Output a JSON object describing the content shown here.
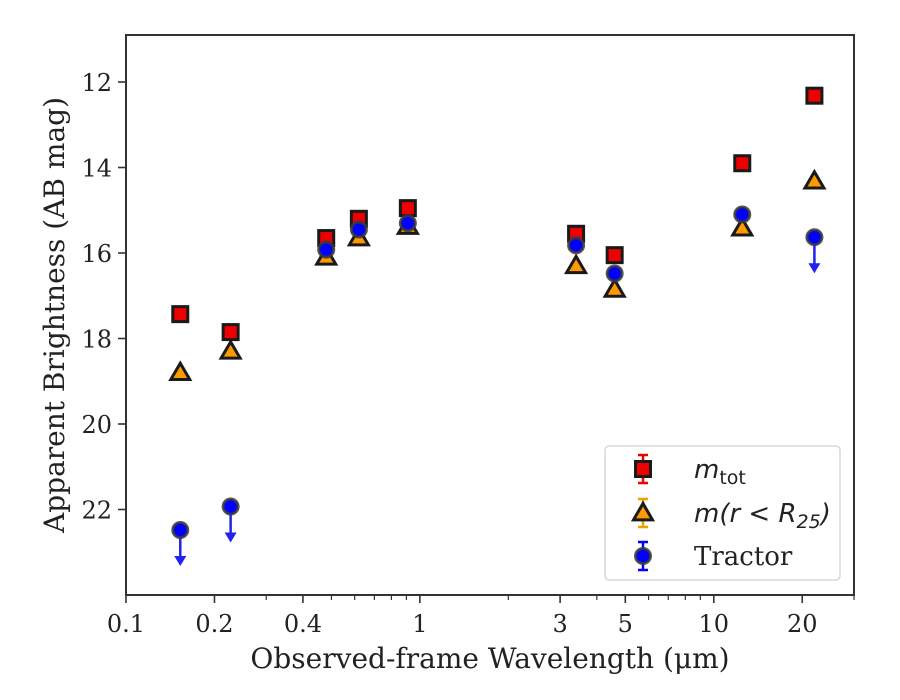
{
  "chart_data": {
    "type": "scatter",
    "title": "",
    "xlabel": "Observed-frame Wavelength (μm)",
    "ylabel": "Apparent Brightness (AB mag)",
    "xscale": "log",
    "xlim": [
      0.1,
      30
    ],
    "ylim": [
      24,
      10.9
    ],
    "y_inverted": true,
    "grid": false,
    "legend_position": "lower right",
    "xticks": [
      {
        "value": 0.1,
        "label": "0.1"
      },
      {
        "value": 0.2,
        "label": "0.2"
      },
      {
        "value": 0.4,
        "label": "0.4"
      },
      {
        "value": 1,
        "label": "1"
      },
      {
        "value": 3,
        "label": "3"
      },
      {
        "value": 5,
        "label": "5"
      },
      {
        "value": 10,
        "label": "10"
      },
      {
        "value": 20,
        "label": "20"
      }
    ],
    "xminor": [
      0.3,
      0.5,
      0.6,
      0.7,
      0.8,
      0.9,
      2,
      4,
      6,
      7,
      8,
      9,
      30
    ],
    "yticks": [
      {
        "value": 12,
        "label": "12"
      },
      {
        "value": 14,
        "label": "14"
      },
      {
        "value": 16,
        "label": "16"
      },
      {
        "value": 18,
        "label": "18"
      },
      {
        "value": 20,
        "label": "20"
      },
      {
        "value": 22,
        "label": "22"
      }
    ],
    "series": [
      {
        "name": "m_tot",
        "label_main": "m",
        "label_sub": "tot",
        "marker": "square",
        "color": "#ee0000",
        "x": [
          0.153,
          0.227,
          0.48,
          0.62,
          0.91,
          3.4,
          4.6,
          12.5,
          22.0
        ],
        "y": [
          17.43,
          17.85,
          15.65,
          15.2,
          14.95,
          15.55,
          16.05,
          13.9,
          12.32
        ],
        "upper_limit": [
          false,
          false,
          false,
          false,
          false,
          false,
          false,
          false,
          false
        ]
      },
      {
        "name": "m(r < R25)",
        "label_main": "m(r < R",
        "label_sub": "25",
        "label_close": ")",
        "marker": "triangle",
        "color": "#ff9900",
        "x": [
          0.153,
          0.227,
          0.48,
          0.62,
          0.91,
          3.4,
          4.6,
          12.5,
          22.0
        ],
        "y": [
          18.8,
          18.3,
          16.1,
          15.65,
          15.38,
          16.3,
          16.85,
          15.42,
          14.32
        ],
        "upper_limit": [
          false,
          false,
          false,
          false,
          false,
          false,
          false,
          false,
          false
        ]
      },
      {
        "name": "Tractor",
        "label_main": "Tractor",
        "marker": "circle",
        "color": "#0000ff",
        "x": [
          0.153,
          0.227,
          0.48,
          0.62,
          0.91,
          3.4,
          4.6,
          12.5,
          22.0
        ],
        "y": [
          22.48,
          21.93,
          15.92,
          15.45,
          15.3,
          15.82,
          16.48,
          15.1,
          15.63
        ],
        "upper_limit": [
          true,
          true,
          false,
          false,
          false,
          false,
          false,
          false,
          true
        ]
      }
    ]
  }
}
